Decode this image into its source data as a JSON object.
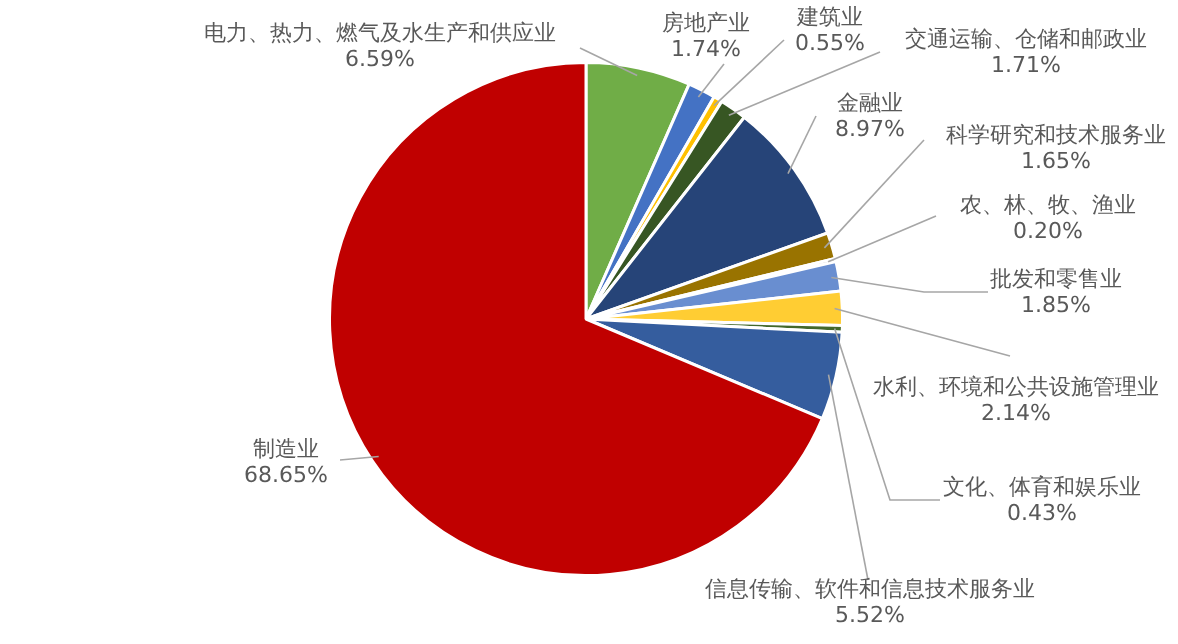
{
  "chart_data": {
    "type": "pie",
    "categories": [
      "电力、热力、燃气及水生产和供应业",
      "房地产业",
      "建筑业",
      "交通运输、仓储和邮政业",
      "金融业",
      "科学研究和技术服务业",
      "农、林、牧、渔业",
      "批发和零售业",
      "水利、环境和公共设施管理业",
      "文化、体育和娱乐业",
      "信息传输、软件和信息技术服务业",
      "制造业"
    ],
    "values": [
      6.59,
      1.74,
      0.55,
      1.71,
      8.97,
      1.65,
      0.2,
      1.85,
      2.14,
      0.43,
      5.52,
      68.65
    ],
    "value_labels": [
      "6.59%",
      "1.74%",
      "0.55%",
      "1.71%",
      "8.97%",
      "1.65%",
      "0.20%",
      "1.85%",
      "2.14%",
      "0.43%",
      "5.52%",
      "68.65%"
    ],
    "colors": [
      "#70ad47",
      "#4472c4",
      "#ffc000",
      "#375623",
      "#264478",
      "#997300",
      "#636363",
      "#698ed0",
      "#ffcd33",
      "#43682b",
      "#355d9e",
      "#c00000"
    ],
    "legend": false
  }
}
